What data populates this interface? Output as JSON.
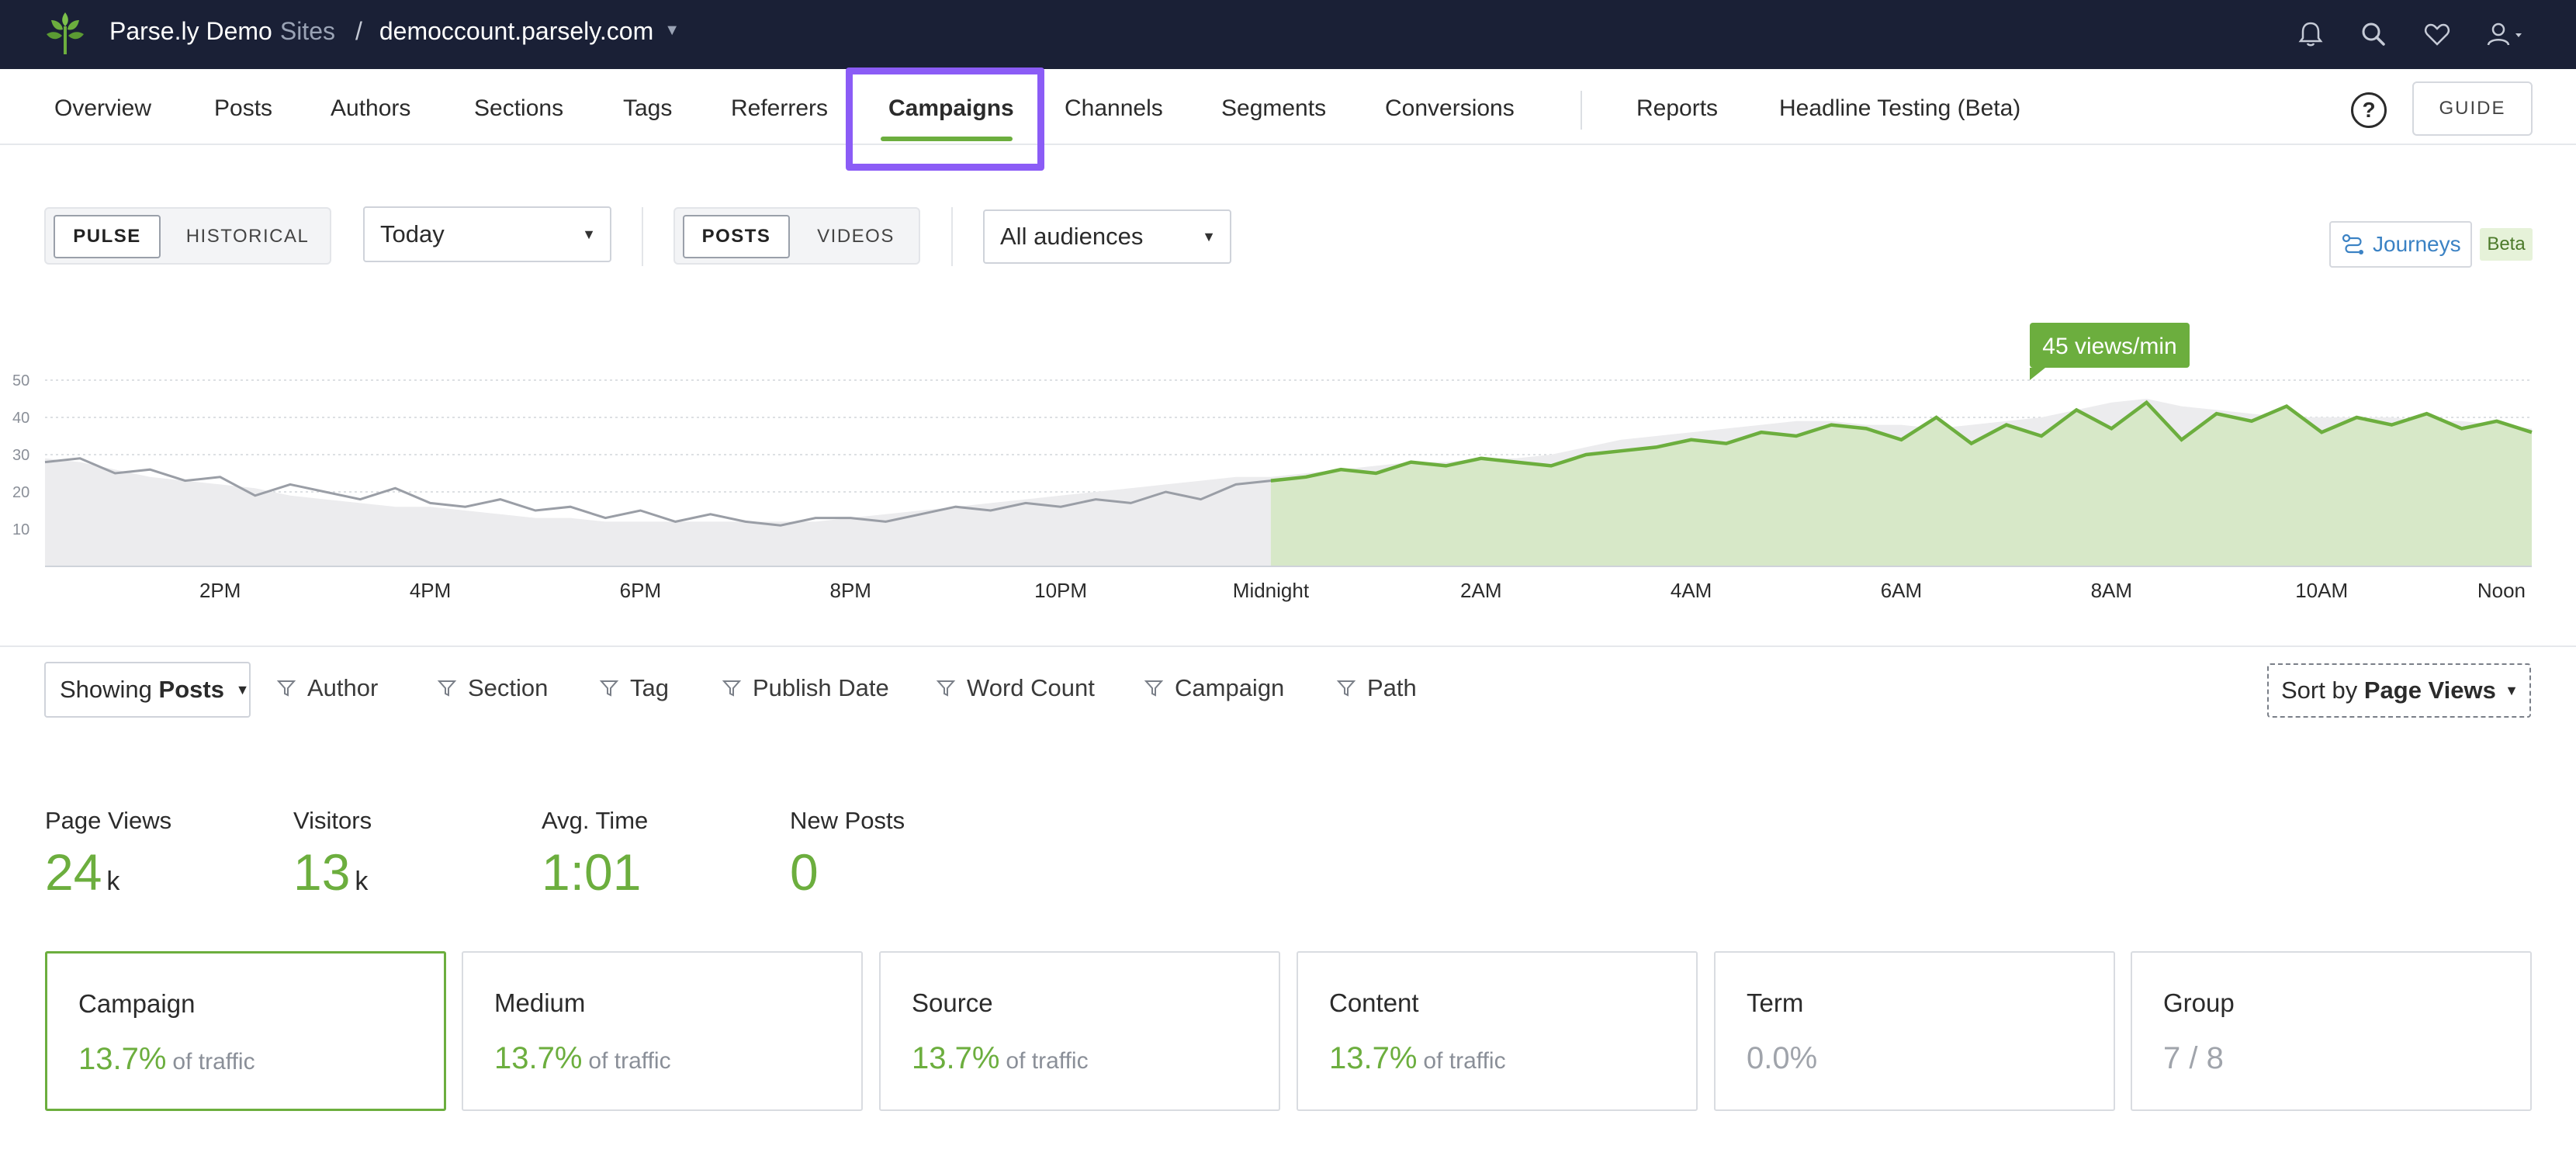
{
  "brand": {
    "name": "Parse.ly Demo",
    "sites_label": "Sites",
    "separator": "/",
    "domain": "democcount.parsely.com"
  },
  "nav": {
    "items": [
      "Overview",
      "Posts",
      "Authors",
      "Sections",
      "Tags",
      "Referrers",
      "Campaigns",
      "Channels",
      "Segments",
      "Conversions",
      "Reports",
      "Headline Testing (Beta)"
    ],
    "active": "Campaigns",
    "help": "?",
    "guide": "GUIDE"
  },
  "controls": {
    "mode": [
      "PULSE",
      "HISTORICAL"
    ],
    "mode_selected": "PULSE",
    "period": "Today",
    "content": [
      "POSTS",
      "VIDEOS"
    ],
    "content_selected": "POSTS",
    "audience": "All audiences",
    "journeys": "Journeys",
    "beta": "Beta"
  },
  "chart_data": {
    "type": "area",
    "x_tick_labels": [
      "2PM",
      "4PM",
      "6PM",
      "8PM",
      "10PM",
      "Midnight",
      "2AM",
      "4AM",
      "6AM",
      "8AM",
      "10AM",
      "Noon"
    ],
    "y_tick_labels": [
      "50",
      "40",
      "30",
      "20",
      "10"
    ],
    "ylim": [
      0,
      50
    ],
    "grid": true,
    "tooltip": "45 views/min",
    "series": [
      {
        "x": [
          "12:20PM",
          "12:40PM",
          "1PM",
          "1:20PM",
          "1:40PM",
          "2PM",
          "2:20PM",
          "2:40PM",
          "3PM",
          "3:20PM",
          "3:40PM",
          "4PM",
          "4:20PM",
          "4:40PM",
          "5PM",
          "5:20PM",
          "5:40PM",
          "6PM",
          "6:20PM",
          "6:40PM",
          "7PM",
          "7:20PM",
          "7:40PM",
          "8PM",
          "8:20PM",
          "8:40PM",
          "9PM",
          "9:20PM",
          "9:40PM",
          "10PM",
          "10:20PM",
          "10:40PM",
          "11PM",
          "11:20PM",
          "11:40PM",
          "Midnight",
          "12:20AM",
          "12:40AM",
          "1AM",
          "1:20AM",
          "1:40AM",
          "2AM",
          "2:20AM",
          "2:40AM",
          "3AM",
          "3:20AM",
          "3:40AM",
          "4AM",
          "4:20AM",
          "4:40AM",
          "5AM",
          "5:20AM",
          "5:40AM",
          "6AM",
          "6:20AM",
          "6:40AM",
          "7AM",
          "7:20AM",
          "7:40AM",
          "8AM",
          "8:20AM",
          "8:40AM",
          "9AM",
          "9:20AM",
          "9:40AM",
          "10AM",
          "10:20AM",
          "10:40AM",
          "11AM",
          "11:20AM",
          "11:40AM",
          "Noon"
        ],
        "values": [
          29,
          28,
          26,
          24,
          23,
          22,
          21,
          19,
          18,
          17,
          16,
          16,
          15,
          14,
          13,
          13,
          12,
          12,
          12,
          12,
          12,
          12,
          12,
          13,
          14,
          15,
          16,
          17,
          18,
          19,
          20,
          21,
          22,
          23,
          24,
          24,
          25,
          26,
          27,
          28,
          28,
          29,
          29,
          30,
          32,
          34,
          35,
          36,
          37,
          38,
          39,
          39,
          38,
          38,
          37,
          38,
          39,
          40,
          42,
          44,
          45,
          43,
          42,
          41,
          40,
          40,
          40,
          40,
          39,
          39,
          38,
          37
        ]
      },
      {
        "x": [
          "12:20PM",
          "12:40PM",
          "1PM",
          "1:20PM",
          "1:40PM",
          "2PM",
          "2:20PM",
          "2:40PM",
          "3PM",
          "3:20PM",
          "3:40PM",
          "4PM",
          "4:20PM",
          "4:40PM",
          "5PM",
          "5:20PM",
          "5:40PM",
          "6PM",
          "6:20PM",
          "6:40PM",
          "7PM",
          "7:20PM",
          "7:40PM",
          "8PM",
          "8:20PM",
          "8:40PM",
          "9PM",
          "9:20PM",
          "9:40PM",
          "10PM",
          "10:20PM",
          "10:40PM",
          "11PM",
          "11:20PM",
          "11:40PM",
          "Midnight",
          "12:20AM",
          "12:40AM",
          "1AM",
          "1:20AM",
          "1:40AM",
          "2AM",
          "2:20AM",
          "2:40AM",
          "3AM",
          "3:20AM",
          "3:40AM",
          "4AM",
          "4:20AM",
          "4:40AM",
          "5AM",
          "5:20AM",
          "5:40AM",
          "6AM",
          "6:20AM",
          "6:40AM",
          "7AM",
          "7:20AM",
          "7:40AM",
          "8AM",
          "8:20AM",
          "8:40AM",
          "9AM",
          "9:20AM",
          "9:40AM",
          "10AM",
          "10:20AM",
          "10:40AM",
          "11AM",
          "11:20AM",
          "11:40AM",
          "Noon"
        ],
        "values": [
          28,
          29,
          25,
          26,
          23,
          24,
          19,
          22,
          20,
          18,
          21,
          17,
          16,
          18,
          15,
          16,
          13,
          15,
          12,
          14,
          12,
          11,
          13,
          13,
          12,
          14,
          16,
          15,
          17,
          16,
          18,
          17,
          20,
          18,
          22,
          23,
          24,
          26,
          25,
          28,
          27,
          29,
          28,
          27,
          30,
          31,
          32,
          34,
          33,
          36,
          35,
          38,
          37,
          34,
          40,
          33,
          38,
          35,
          42,
          37,
          44,
          34,
          41,
          39,
          43,
          36,
          40,
          38,
          41,
          37,
          39,
          36
        ]
      }
    ]
  },
  "filters": {
    "showing_prefix": "Showing",
    "showing_value": "Posts",
    "items": [
      "Author",
      "Section",
      "Tag",
      "Publish Date",
      "Word Count",
      "Campaign",
      "Path"
    ],
    "sort_prefix": "Sort by",
    "sort_value": "Page Views"
  },
  "metrics": [
    {
      "label": "Page Views",
      "value": "24",
      "unit": "k"
    },
    {
      "label": "Visitors",
      "value": "13",
      "unit": "k"
    },
    {
      "label": "Avg. Time",
      "value": "1:01",
      "unit": ""
    },
    {
      "label": "New Posts",
      "value": "0",
      "unit": ""
    }
  ],
  "cards": [
    {
      "title": "Campaign",
      "value": "13.7%",
      "suffix": "of traffic"
    },
    {
      "title": "Medium",
      "value": "13.7%",
      "suffix": "of traffic"
    },
    {
      "title": "Source",
      "value": "13.7%",
      "suffix": "of traffic"
    },
    {
      "title": "Content",
      "value": "13.7%",
      "suffix": "of traffic"
    },
    {
      "title": "Term",
      "value": "0.0%",
      "suffix": ""
    },
    {
      "title": "Group",
      "value": "7 / 8",
      "suffix": ""
    }
  ],
  "colors": {
    "accent": "#6cae3e",
    "topbar": "#1a2036",
    "highlight": "#8b5cf6"
  }
}
